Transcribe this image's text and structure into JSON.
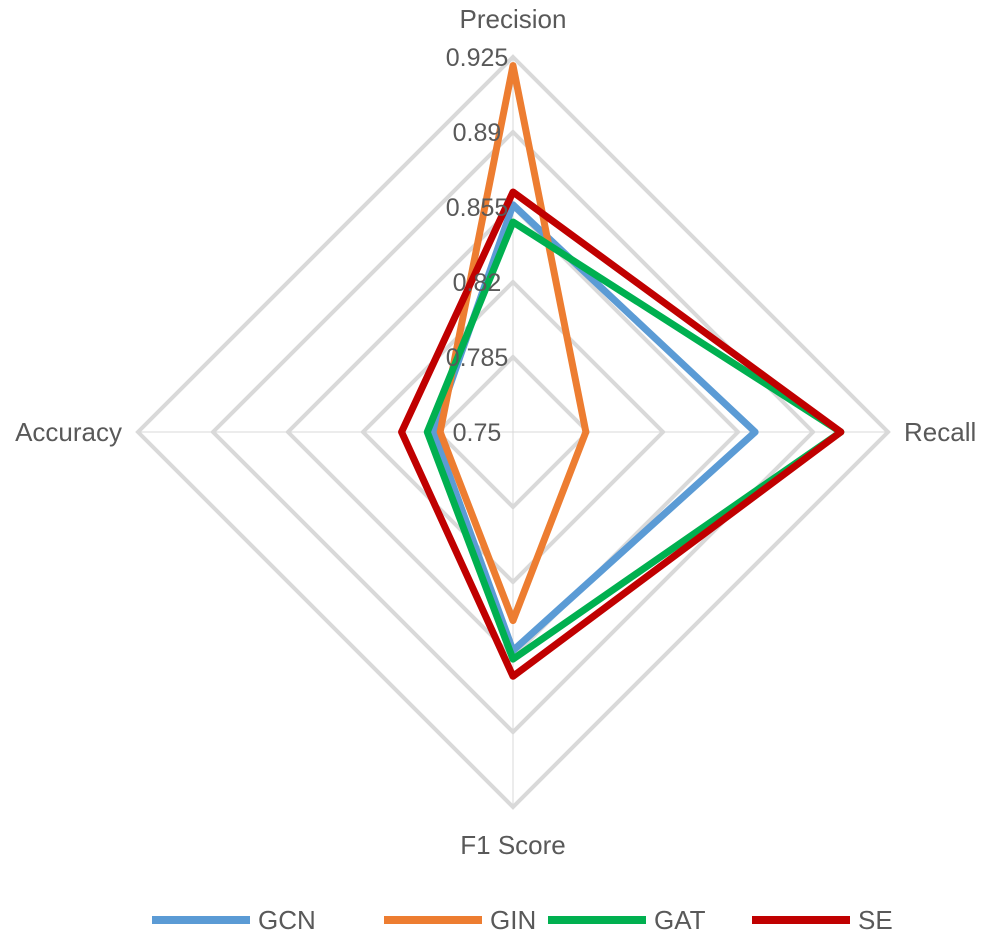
{
  "chart_data": {
    "type": "radar",
    "title": "",
    "axes": [
      "Precision",
      "Recall",
      "F1 Score",
      "Accuracy"
    ],
    "rlim": [
      0.75,
      0.925
    ],
    "ticks": [
      "0.75",
      "0.785",
      "0.82",
      "0.855",
      "0.89",
      "0.925"
    ],
    "grid": true,
    "legend_position": "bottom",
    "series": [
      {
        "name": "GCN",
        "color": "#5b9bd5",
        "values": [
          0.856,
          0.863,
          0.852,
          0.787
        ]
      },
      {
        "name": "GIN",
        "color": "#ed7d31",
        "values": [
          0.921,
          0.784,
          0.838,
          0.784
        ]
      },
      {
        "name": "GAT",
        "color": "#00b050",
        "values": [
          0.848,
          0.903,
          0.856,
          0.79
        ]
      },
      {
        "name": "SE",
        "color": "#c00000",
        "values": [
          0.862,
          0.903,
          0.864,
          0.802
        ]
      }
    ]
  }
}
